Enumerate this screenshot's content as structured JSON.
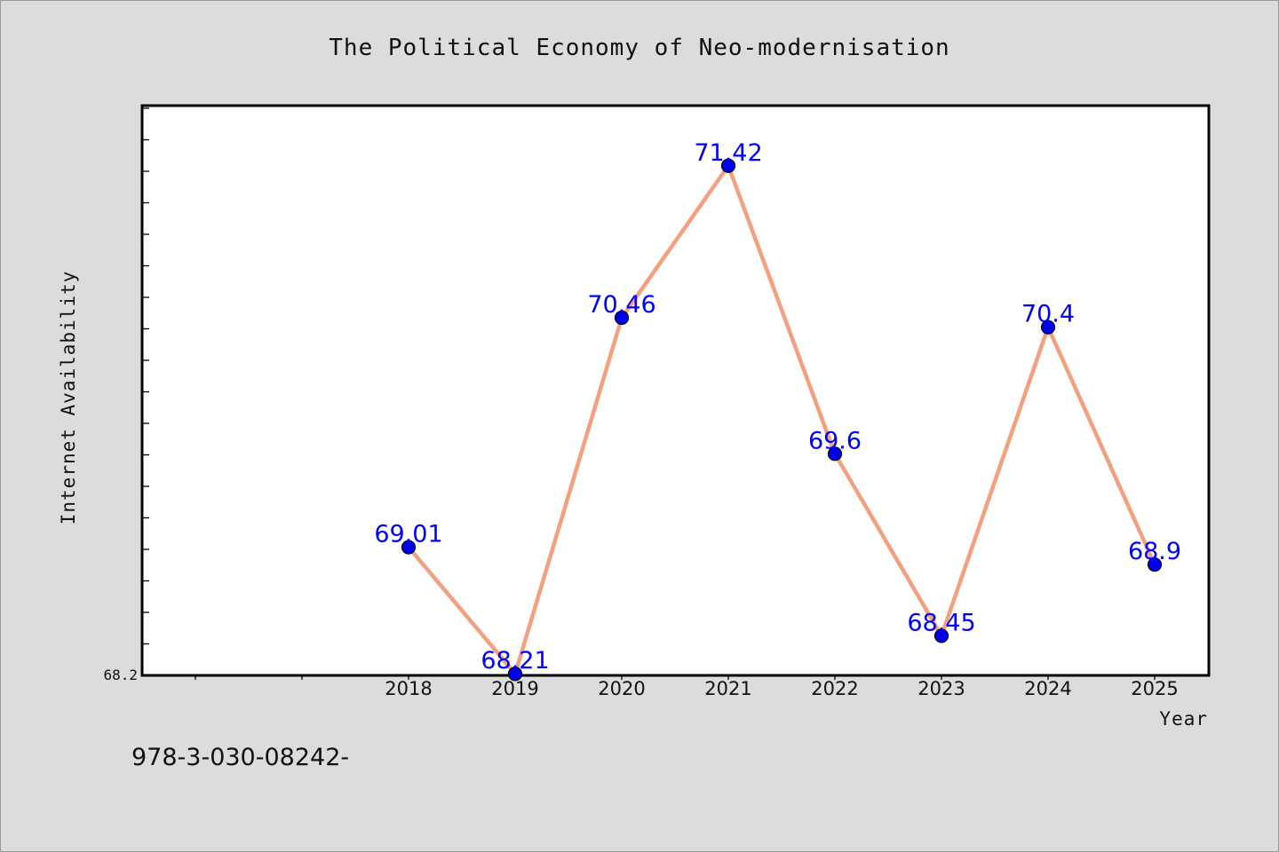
{
  "chart_data": {
    "type": "line",
    "title": "The Political Economy of Neo-modernisation",
    "xlabel": "Year",
    "ylabel": "Internet Availability",
    "x": [
      "2018",
      "2019",
      "2020",
      "2021",
      "2022",
      "2023",
      "2024",
      "2025"
    ],
    "values": [
      69.01,
      68.21,
      70.46,
      71.42,
      69.6,
      68.45,
      70.4,
      68.9
    ],
    "data_labels": [
      "69.01",
      "68.21",
      "70.46",
      "71.42",
      "69.6",
      "68.45",
      "70.4",
      "68.9"
    ],
    "y_tick_label": "68.2",
    "ylim": [
      68.2,
      71.8
    ],
    "grid": false,
    "colors": {
      "line": "#f4a07f",
      "marker": "#0000ee",
      "label": "#0000ff",
      "plot_bg": "#ffffff",
      "page_bg": "#dcdcdc"
    }
  },
  "footer": {
    "text": "978-3-030-08242-"
  }
}
